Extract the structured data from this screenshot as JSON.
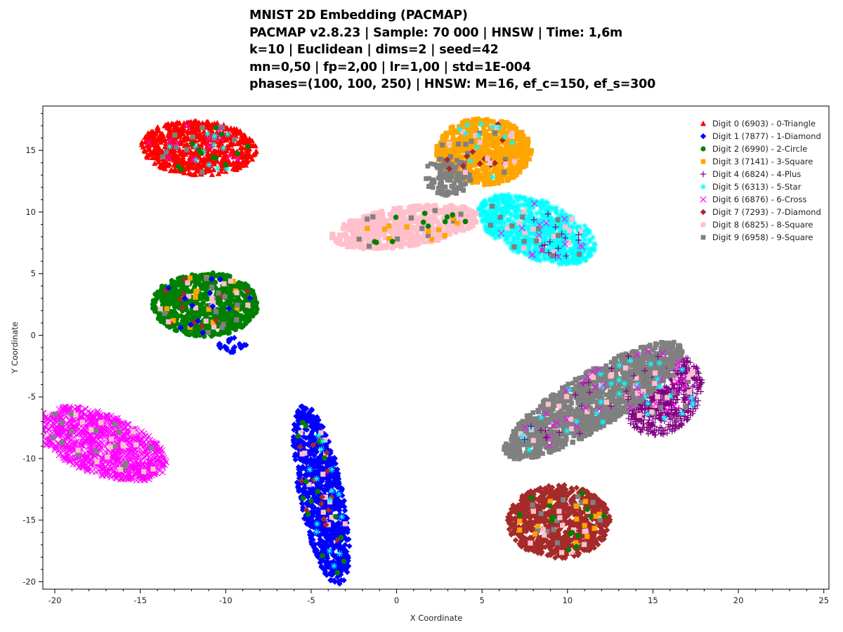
{
  "chart_data": {
    "type": "scatter",
    "title": "MNIST 2D Embedding (PACMAP)",
    "subtitle_lines": [
      "PACMAP v2.8.23 | Sample: 70 000 | HNSW | Time: 1,6m",
      "k=10 | Euclidean | dims=2 | seed=42",
      "mn=0,50 | fp=2,00 | lr=1,00 | std=1E-004",
      "phases=(100, 100, 250) | HNSW: M=16, ef_c=150, ef_s=300"
    ],
    "xlabel": "X Coordinate",
    "ylabel": "Y Coordinate",
    "xlim": [
      -20.7,
      25.3
    ],
    "ylim": [
      -20.6,
      18.6
    ],
    "xticks": [
      -20,
      -15,
      -10,
      -5,
      0,
      5,
      10,
      15,
      20,
      25
    ],
    "xtick_labels": [
      "-20",
      "-15",
      "-10",
      "-5",
      "0",
      "5",
      "10",
      "15",
      "20",
      "25"
    ],
    "yticks": [
      -20,
      -15,
      -10,
      -5,
      0,
      5,
      10,
      15
    ],
    "ytick_labels": [
      "-20",
      "-15",
      "-10",
      "-5",
      "0",
      "5",
      "10",
      "15"
    ],
    "grid": false,
    "legend_position": "top-right",
    "series": [
      {
        "name": "Digit 0 (6903) - 0-Triangle",
        "digit": 0,
        "count": 6903,
        "marker": "triangle",
        "color": "#ff0000",
        "clusters": [
          {
            "cx": -11.6,
            "cy": 15.2,
            "rx": 3.4,
            "ry": 2.2,
            "angle": -5
          }
        ]
      },
      {
        "name": "Digit 1 (7877) - 1-Diamond",
        "digit": 1,
        "count": 7877,
        "marker": "diamond",
        "color": "#0000ff",
        "clusters": [
          {
            "cx": -4.4,
            "cy": -13.0,
            "rx": 1.3,
            "ry": 7.4,
            "angle": 8
          },
          {
            "cx": -9.6,
            "cy": -0.8,
            "rx": 0.8,
            "ry": 0.6,
            "angle": 0
          }
        ]
      },
      {
        "name": "Digit 2 (6990) - 2-Circle",
        "digit": 2,
        "count": 6990,
        "marker": "circle",
        "color": "#008000",
        "clusters": [
          {
            "cx": -11.2,
            "cy": 2.5,
            "rx": 3.1,
            "ry": 2.6,
            "angle": 0
          }
        ]
      },
      {
        "name": "Digit 3 (7141) - 3-Square",
        "digit": 3,
        "count": 7141,
        "marker": "square",
        "color": "#ffa500",
        "clusters": [
          {
            "cx": 5.1,
            "cy": 14.9,
            "rx": 2.8,
            "ry": 2.7,
            "angle": 0
          }
        ]
      },
      {
        "name": "Digit 4 (6824) - 4-Plus",
        "digit": 4,
        "count": 6824,
        "marker": "plus",
        "color": "#800080",
        "clusters": [
          {
            "cx": 15.6,
            "cy": -4.8,
            "rx": 2.2,
            "ry": 3.4,
            "angle": -15
          }
        ]
      },
      {
        "name": "Digit 5 (6313) - 5-Star",
        "digit": 5,
        "count": 6313,
        "marker": "star",
        "color": "#00ffff",
        "clusters": [
          {
            "cx": 8.2,
            "cy": 8.6,
            "rx": 3.9,
            "ry": 2.2,
            "angle": -35
          }
        ]
      },
      {
        "name": "Digit 6 (6876) - 6-Cross",
        "digit": 6,
        "count": 6876,
        "marker": "cross",
        "color": "#ff00ff",
        "clusters": [
          {
            "cx": -17.3,
            "cy": -8.8,
            "rx": 4.3,
            "ry": 2.3,
            "angle": -32
          }
        ]
      },
      {
        "name": "Digit 7 (7293) - 7-Diamond",
        "digit": 7,
        "count": 7293,
        "marker": "diamond",
        "color": "#a52a2a",
        "clusters": [
          {
            "cx": 9.5,
            "cy": -15.1,
            "rx": 3.0,
            "ry": 3.0,
            "angle": 0
          }
        ]
      },
      {
        "name": "Digit 8 (6825) - 8-Square",
        "digit": 8,
        "count": 6825,
        "marker": "square",
        "color": "#ffc0cb",
        "clusters": [
          {
            "cx": 0.5,
            "cy": 8.8,
            "rx": 4.4,
            "ry": 1.6,
            "angle": 12
          }
        ]
      },
      {
        "name": "Digit 9 (6958) - 9-Square",
        "digit": 9,
        "count": 6958,
        "marker": "square",
        "color": "#808080",
        "clusters": [
          {
            "cx": 11.5,
            "cy": -5.3,
            "rx": 6.8,
            "ry": 2.0,
            "angle": 42
          },
          {
            "cx": 3.0,
            "cy": 12.9,
            "rx": 1.4,
            "ry": 1.6,
            "angle": 0
          }
        ]
      }
    ]
  }
}
